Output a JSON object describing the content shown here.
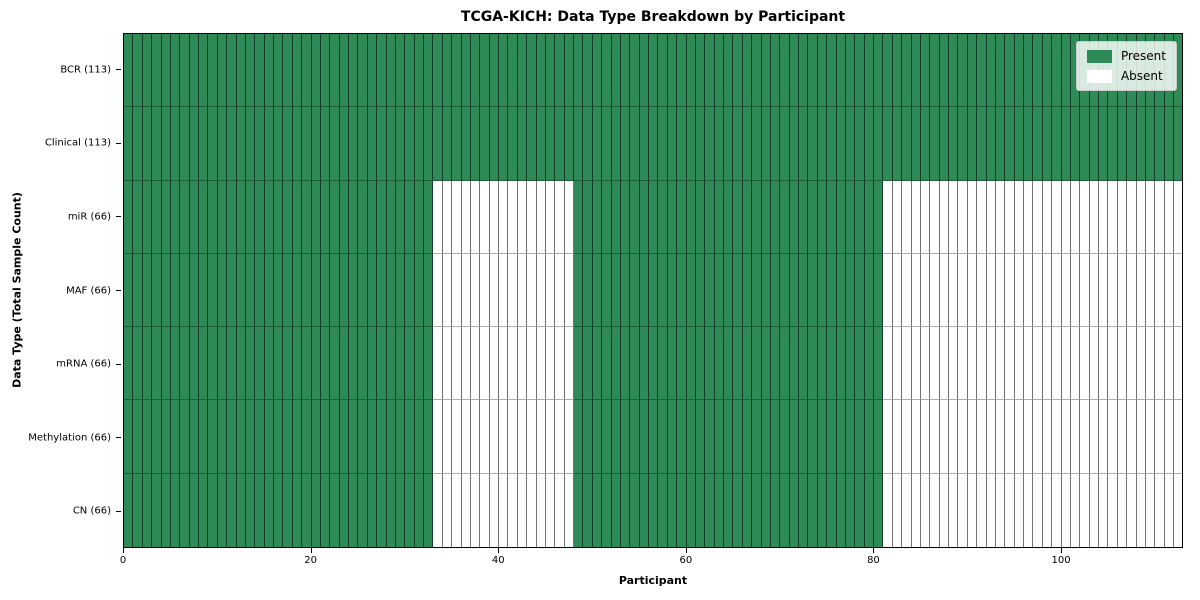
{
  "chart_data": {
    "type": "heatmap",
    "title": "TCGA-KICH: Data Type Breakdown by Participant",
    "xlabel": "Participant",
    "ylabel": "Data Type (Total Sample Count)",
    "xlim": [
      0,
      113
    ],
    "n_participants": 113,
    "x_ticks": [
      0,
      20,
      40,
      60,
      80,
      100
    ],
    "grid": "per-cell edges",
    "colors": {
      "present": "#2e8b57",
      "absent": "#ffffff"
    },
    "legend": {
      "position": "upper right",
      "entries": [
        {
          "label": "Present",
          "color": "#2e8b57"
        },
        {
          "label": "Absent",
          "color": "#ffffff"
        }
      ]
    },
    "rows": [
      {
        "label": "BCR (113)",
        "total_samples": 113,
        "present_ranges": [
          [
            0,
            113
          ]
        ]
      },
      {
        "label": "Clinical (113)",
        "total_samples": 113,
        "present_ranges": [
          [
            0,
            113
          ]
        ]
      },
      {
        "label": "miR (66)",
        "total_samples": 66,
        "present_ranges": [
          [
            0,
            33
          ],
          [
            48,
            81
          ]
        ]
      },
      {
        "label": "MAF (66)",
        "total_samples": 66,
        "present_ranges": [
          [
            0,
            33
          ],
          [
            48,
            81
          ]
        ]
      },
      {
        "label": "mRNA (66)",
        "total_samples": 66,
        "present_ranges": [
          [
            0,
            33
          ],
          [
            48,
            81
          ]
        ]
      },
      {
        "label": "Methylation (66)",
        "total_samples": 66,
        "present_ranges": [
          [
            0,
            33
          ],
          [
            48,
            81
          ]
        ]
      },
      {
        "label": "CN (66)",
        "total_samples": 66,
        "present_ranges": [
          [
            0,
            33
          ],
          [
            48,
            81
          ]
        ]
      }
    ]
  }
}
